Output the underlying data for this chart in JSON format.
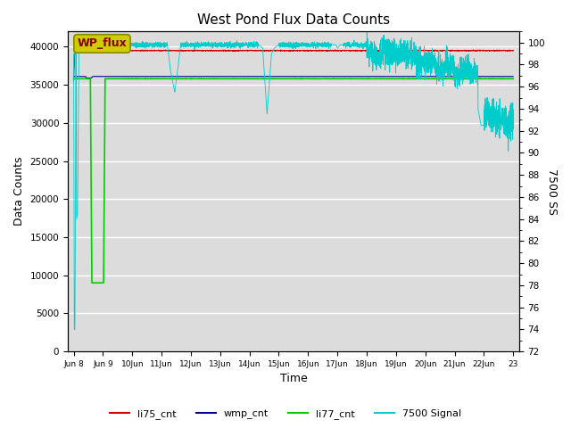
{
  "title": "West Pond Flux Data Counts",
  "ylabel_left": "Data Counts",
  "ylabel_right": "7500 SS",
  "xlabel": "Time",
  "ylim_left": [
    0,
    42000
  ],
  "ylim_right": [
    72,
    101
  ],
  "yticks_left": [
    0,
    5000,
    10000,
    15000,
    20000,
    25000,
    30000,
    35000,
    40000
  ],
  "yticks_right": [
    72,
    74,
    76,
    78,
    80,
    82,
    84,
    86,
    88,
    90,
    92,
    94,
    96,
    98,
    100
  ],
  "xtick_positions": [
    0,
    1,
    2,
    3,
    4,
    5,
    6,
    7,
    8,
    9,
    10,
    11,
    12,
    13,
    14,
    15
  ],
  "xtick_labels": [
    "Jun 8",
    "Jun 9",
    "10Jun",
    "11Jun",
    "12Jun",
    "13Jun",
    "14Jun",
    "15Jun",
    "16Jun",
    "17Jun",
    "18Jun",
    "19Jun",
    "20Jun",
    "21Jun",
    "22Jun",
    "23"
  ],
  "background_color": "#dcdcdc",
  "li75_color": "#cc0000",
  "wmp_color": "#000099",
  "li77_color": "#00cc00",
  "signal_color": "#00cccc",
  "annotation_text": "WP_flux",
  "annotation_bg": "#cccc00",
  "annotation_border": "#888800",
  "li77_level": 35800,
  "wmp_level": 36100,
  "li75_level": 39500,
  "sig_high": 99.8,
  "sig_low_early": 74.0,
  "sig_drop_day": 10,
  "right_ymin": 72,
  "right_ymax": 101,
  "left_ymax": 42000
}
